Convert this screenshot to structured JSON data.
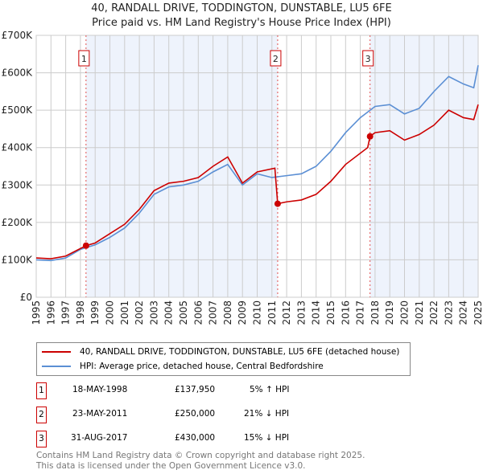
{
  "title_line1": "40, RANDALL DRIVE, TODDINGTON, DUNSTABLE, LU5 6FE",
  "title_line2": "Price paid vs. HM Land Registry's House Price Index (HPI)",
  "chart_data": {
    "type": "line",
    "xlim": [
      1995,
      2025
    ],
    "ylim": [
      0,
      700000
    ],
    "yticks": [
      0,
      100000,
      200000,
      300000,
      400000,
      500000,
      600000,
      700000
    ],
    "ytick_labels": [
      "£0",
      "£100K",
      "£200K",
      "£300K",
      "£400K",
      "£500K",
      "£600K",
      "£700K"
    ],
    "xticks": [
      "1995",
      "1996",
      "1997",
      "1998",
      "1999",
      "2000",
      "2001",
      "2002",
      "2003",
      "2004",
      "2005",
      "2006",
      "2007",
      "2008",
      "2009",
      "2010",
      "2011",
      "2012",
      "2013",
      "2014",
      "2015",
      "2016",
      "2017",
      "2018",
      "2019",
      "2020",
      "2021",
      "2022",
      "2023",
      "2024",
      "2025"
    ],
    "grid": true,
    "series": [
      {
        "name": "40, RANDALL DRIVE, TODDINGTON, DUNSTABLE, LU5 6FE (detached house)",
        "color": "#cc0000",
        "x": [
          1995,
          1996,
          1997,
          1998.38,
          1999,
          2000,
          2001,
          2002,
          2003,
          2004,
          2005,
          2006,
          2007,
          2008,
          2009,
          2010,
          2011.2,
          2011.39,
          2012,
          2013,
          2014,
          2015,
          2016,
          2017.5,
          2017.66,
          2018,
          2019,
          2020,
          2021,
          2022,
          2023,
          2024,
          2024.7,
          2025
        ],
        "y": [
          105000,
          103000,
          110000,
          137950,
          145000,
          170000,
          195000,
          235000,
          285000,
          305000,
          310000,
          320000,
          350000,
          375000,
          305000,
          335000,
          345000,
          250000,
          255000,
          260000,
          275000,
          310000,
          355000,
          400000,
          430000,
          440000,
          445000,
          420000,
          435000,
          460000,
          500000,
          480000,
          475000,
          515000
        ]
      },
      {
        "name": "HPI: Average price, detached house, Central Bedfordshire",
        "color": "#5b8fd4",
        "x": [
          1995,
          1996,
          1997,
          1998,
          1999,
          2000,
          2001,
          2002,
          2003,
          2004,
          2005,
          2006,
          2007,
          2008,
          2009,
          2010,
          2011,
          2012,
          2013,
          2014,
          2015,
          2016,
          2017,
          2018,
          2019,
          2020,
          2021,
          2022,
          2023,
          2024,
          2024.7,
          2025
        ],
        "y": [
          100000,
          98000,
          105000,
          128000,
          140000,
          160000,
          185000,
          225000,
          275000,
          295000,
          300000,
          310000,
          335000,
          355000,
          300000,
          330000,
          320000,
          325000,
          330000,
          350000,
          390000,
          440000,
          480000,
          510000,
          515000,
          490000,
          505000,
          550000,
          590000,
          570000,
          560000,
          620000
        ]
      }
    ],
    "sales": [
      {
        "label": "1",
        "x": 1998.38,
        "y": 137950,
        "date": "18-MAY-1998",
        "price": "£137,950",
        "delta": "5% ↑ HPI"
      },
      {
        "label": "2",
        "x": 2011.39,
        "y": 250000,
        "date": "23-MAY-2011",
        "price": "£250,000",
        "delta": "21% ↓ HPI"
      },
      {
        "label": "3",
        "x": 2017.66,
        "y": 430000,
        "date": "31-AUG-2017",
        "price": "£430,000",
        "delta": "15% ↓ HPI"
      }
    ],
    "legend_position": "below"
  },
  "footer_line1": "Contains HM Land Registry data © Crown copyright and database right 2025.",
  "footer_line2": "This data is licensed under the Open Government Licence v3.0."
}
